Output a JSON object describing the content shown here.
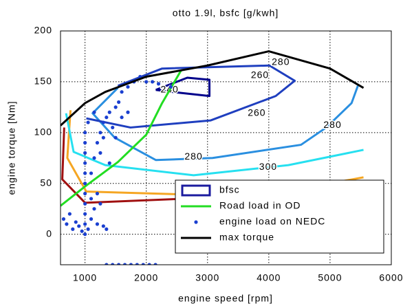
{
  "chart_data": {
    "type": "contour-line",
    "title": "otto 1.9l, bsfc [g/kwh]",
    "xlabel": "engine speed [rpm]",
    "ylabel": "engine torque [Nm]",
    "xlim": [
      600,
      6000
    ],
    "ylim": [
      -30,
      200
    ],
    "xticks": [
      1000,
      2000,
      3000,
      4000,
      5000,
      6000
    ],
    "yticks": [
      0,
      50,
      100,
      150,
      200
    ],
    "grid": true,
    "legend": "lower right",
    "contour": {
      "name": "bfsc",
      "color": "#1a1a9e",
      "lines": [
        {
          "color": "#a01010",
          "x": [
            660,
            629,
            1000,
            5546
          ],
          "y": [
            105,
            54,
            31,
            42
          ]
        },
        {
          "color": "#f5a623",
          "x": [
            763,
            711,
            1021,
            3804,
            5546
          ],
          "y": [
            122,
            75,
            42,
            37,
            56
          ]
        },
        {
          "color": "#26e0f0",
          "x": [
            691,
            814,
            1330,
            2773,
            4320,
            5546
          ],
          "y": [
            119,
            81,
            68,
            58,
            68,
            83
          ]
        },
        {
          "color": "#2a8fe0",
          "x": [
            1536,
            1124,
            1485,
            2155,
            3082,
            4526,
            4938,
            5351,
            5454
          ],
          "y": [
            144,
            119,
            95,
            73,
            75,
            88,
            105,
            129,
            146
          ]
        },
        {
          "color": "#1f3fbf",
          "x": [
            1536,
            2258,
            4010,
            4423,
            4113,
            3052,
            1742,
            1021
          ],
          "y": [
            146,
            163,
            166,
            151,
            136,
            112,
            105,
            114
          ]
        },
        {
          "color": "#00008b",
          "x": [
            2155,
            2670,
            3031,
            3031,
            2567,
            2155
          ],
          "y": [
            142,
            154,
            152,
            136,
            139,
            142
          ]
        }
      ]
    },
    "annotations": [
      {
        "text": "240",
        "x": 2381,
        "y": 142
      },
      {
        "text": "260",
        "x": 3856,
        "y": 156
      },
      {
        "text": "260",
        "x": 3804,
        "y": 119
      },
      {
        "text": "280",
        "x": 4196,
        "y": 169
      },
      {
        "text": "280",
        "x": 2773,
        "y": 76
      },
      {
        "text": "280",
        "x": 5041,
        "y": 107
      },
      {
        "text": "300",
        "x": 3990,
        "y": 66
      }
    ],
    "series": [
      {
        "name": "Road load in OD",
        "style": "line",
        "color": "#22dd22",
        "x": [
          600,
          1000,
          1536,
          2000,
          2258,
          2567
        ],
        "y": [
          28,
          47,
          71,
          98,
          129,
          161
        ]
      },
      {
        "name": "engine load on NEDC",
        "style": "scatter",
        "color": "#1a3fd0",
        "x": [
          650,
          700,
          750,
          800,
          850,
          900,
          950,
          1000,
          1000,
          1000,
          1000,
          1000,
          1000,
          1000,
          1000,
          1000,
          1000,
          1000,
          1050,
          1050,
          1100,
          1150,
          1200,
          1250,
          1300,
          1350,
          1100,
          1150,
          1200,
          1250,
          1300,
          1350,
          1400,
          1450,
          1500,
          1550,
          1600,
          1700,
          1800,
          1900,
          2000,
          2100,
          2200,
          2400,
          1250,
          1300,
          1150,
          1200,
          1100,
          1400,
          1500,
          1600,
          1700,
          1350,
          1450,
          1550,
          1650,
          1750,
          1850,
          1950,
          2050,
          2150
        ],
        "y": [
          15,
          10,
          20,
          5,
          12,
          8,
          3,
          0,
          10,
          20,
          30,
          40,
          50,
          60,
          70,
          80,
          90,
          100,
          110,
          5,
          15,
          25,
          10,
          30,
          8,
          5,
          60,
          75,
          90,
          100,
          110,
          115,
          120,
          105,
          125,
          130,
          140,
          145,
          150,
          155,
          150,
          150,
          148,
          145,
          80,
          95,
          120,
          40,
          35,
          70,
          95,
          115,
          120,
          -30,
          -30,
          -30,
          -30,
          -30,
          -30,
          -30,
          -30,
          -30
        ]
      },
      {
        "name": "max torque",
        "style": "line",
        "color": "#000000",
        "x": [
          600,
          1000,
          1330,
          2000,
          3000,
          4000,
          5000,
          5546
        ],
        "y": [
          107,
          129,
          140,
          155,
          166,
          180,
          163,
          144
        ]
      }
    ]
  }
}
